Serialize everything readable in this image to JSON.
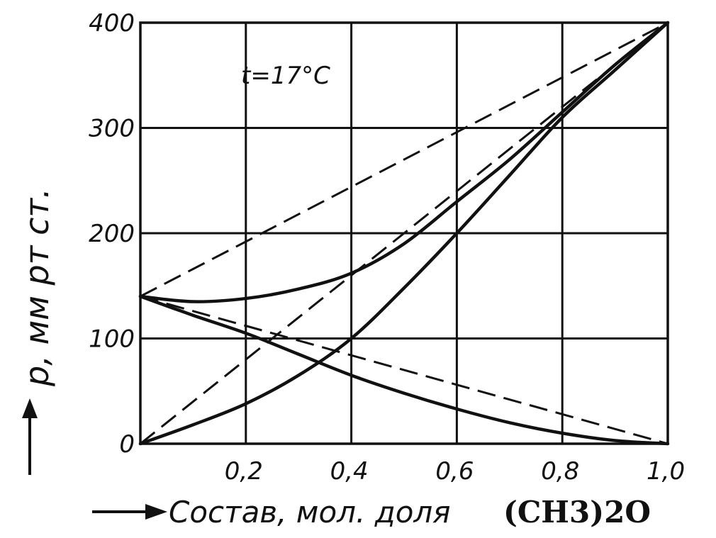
{
  "chart_data": {
    "type": "line",
    "xlabel": "Состав, мол. доля",
    "xlabel_formula_main": "(CH",
    "xlabel_formula_sub": "3",
    "xlabel_formula_end": ")2O",
    "ylabel": "p, мм рт ст.",
    "annotation": "t=17°C",
    "xlim": [
      0,
      1.0
    ],
    "ylim": [
      0,
      400
    ],
    "x_ticks": [
      {
        "value": 0.2,
        "label": "0,2"
      },
      {
        "value": 0.4,
        "label": "0,4"
      },
      {
        "value": 0.6,
        "label": "0,6"
      },
      {
        "value": 0.8,
        "label": "0,8"
      },
      {
        "value": 1.0,
        "label": "1,0"
      }
    ],
    "y_ticks": [
      {
        "value": 0,
        "label": "0"
      },
      {
        "value": 100,
        "label": "100"
      },
      {
        "value": 200,
        "label": "200"
      },
      {
        "value": 300,
        "label": "300"
      },
      {
        "value": 400,
        "label": "400"
      }
    ],
    "grid": true,
    "series": [
      {
        "style": "dashed",
        "x": [
          0,
          1.0
        ],
        "y": [
          140,
          400
        ]
      },
      {
        "style": "dashed",
        "x": [
          0,
          1.0
        ],
        "y": [
          0,
          400
        ]
      },
      {
        "style": "dashed",
        "x": [
          0,
          1.0
        ],
        "y": [
          140,
          0
        ]
      },
      {
        "style": "solid",
        "x": [
          0,
          0.1,
          0.2,
          0.3,
          0.4,
          0.5,
          0.6,
          0.7,
          0.8,
          0.9,
          1.0
        ],
        "y": [
          140,
          135,
          138,
          147,
          162,
          190,
          230,
          270,
          315,
          360,
          400
        ]
      },
      {
        "style": "solid",
        "x": [
          0,
          0.1,
          0.2,
          0.3,
          0.4,
          0.5,
          0.6,
          0.7,
          0.8,
          0.9,
          1.0
        ],
        "y": [
          0,
          18,
          38,
          65,
          100,
          148,
          200,
          255,
          310,
          355,
          400
        ]
      },
      {
        "style": "solid",
        "x": [
          0,
          0.1,
          0.2,
          0.3,
          0.4,
          0.5,
          0.6,
          0.7,
          0.8,
          0.9,
          1.0
        ],
        "y": [
          140,
          122,
          105,
          85,
          65,
          48,
          33,
          20,
          10,
          3,
          0
        ]
      }
    ]
  }
}
